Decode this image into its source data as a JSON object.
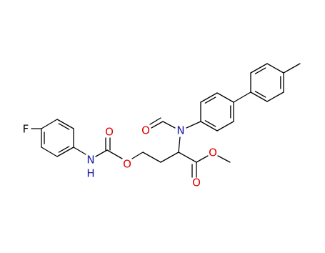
{
  "atoms": [
    {
      "label": "F"
    },
    {
      "label": "O"
    },
    {
      "label": "O"
    },
    {
      "label": "N"
    },
    {
      "label": "H"
    },
    {
      "label": "O"
    },
    {
      "label": "N"
    },
    {
      "label": "O"
    },
    {
      "label": "O"
    }
  ]
}
